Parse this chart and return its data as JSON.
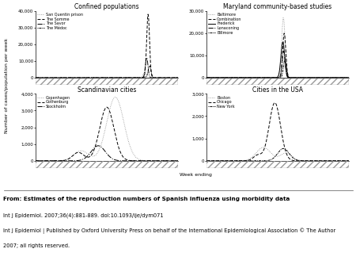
{
  "title_fontsize": 5.5,
  "axis_label_fontsize": 4.5,
  "tick_fontsize": 4,
  "legend_fontsize": 3.5,
  "bg_color": "#ffffff",
  "subplot_titles": [
    "Confined populations",
    "Maryland community-based studies",
    "Scandinavian cities",
    "Cities in the USA"
  ],
  "ylabel": "Number of cases/population per week",
  "xlabel": "Week ending",
  "confined_ylim": [
    0,
    40000
  ],
  "confined_yticks": [
    0,
    10000,
    20000,
    30000,
    40000
  ],
  "maryland_ylim": [
    0,
    30000
  ],
  "maryland_yticks": [
    0,
    10000,
    20000,
    30000
  ],
  "scand_ylim": [
    0,
    4000
  ],
  "scand_yticks": [
    0,
    1000,
    2000,
    3000,
    4000
  ],
  "usa_ylim": [
    0,
    3000
  ],
  "usa_yticks": [
    0,
    1000,
    2000,
    3000
  ],
  "confined_legend": [
    "San Quentin prison",
    "The Somme",
    "The Savor",
    "The Médoc"
  ],
  "maryland_legend": [
    "Baltimore",
    "Combination",
    "Frederick",
    "Lonaconing",
    "Billmore"
  ],
  "scand_legend": [
    "Copenhagen",
    "Gothenburg",
    "Stockholm"
  ],
  "usa_legend": [
    "Boston",
    "Chicago",
    "New York"
  ],
  "caption": [
    "From: Estimates of the reproduction numbers of Spanish influenza using morbidity data",
    "Int J Epidemiol. 2007;36(4):881-889. doi:10.1093/ije/dym071",
    "Int J Epidemiol | Published by Oxford University Press on behalf of the International Epidemiological Association © The Author",
    "2007; all rights reserved."
  ]
}
